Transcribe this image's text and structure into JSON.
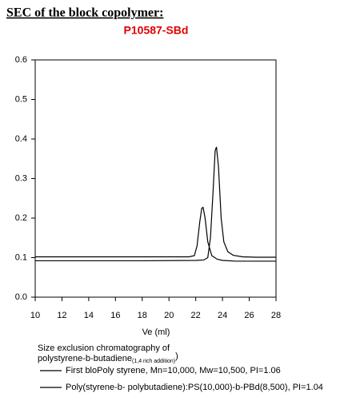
{
  "chart_data": {
    "type": "line",
    "title": "SEC of the block copolymer:",
    "subtitle": "P10587-SBd",
    "xlabel": "Ve (ml)",
    "xlim": [
      10,
      28
    ],
    "xticks": [
      10,
      12,
      14,
      16,
      18,
      20,
      22,
      24,
      26,
      28
    ],
    "ylim": [
      0,
      0.6
    ],
    "yticks": [
      {
        "value": 0,
        "label": "0.0"
      },
      0.1,
      0.2,
      0.3,
      0.4,
      0.5,
      0.6
    ],
    "note": [
      "Size exclusion chromatography of",
      "polystyrene-b-butadiene",
      "(1,4 rich addition)",
      ")"
    ],
    "series": [
      {
        "name": "First bloPoly styrene, Mn=10,000, Mw=10,500, PI=1.06",
        "color": "#000000",
        "x": [
          10,
          14,
          18,
          22,
          22.6,
          22.9,
          23.1,
          23.3,
          23.45,
          23.55,
          23.7,
          23.9,
          24.1,
          24.4,
          24.8,
          25.5,
          26.5,
          28
        ],
        "values": [
          0.092,
          0.092,
          0.092,
          0.093,
          0.094,
          0.1,
          0.15,
          0.27,
          0.37,
          0.38,
          0.33,
          0.2,
          0.14,
          0.115,
          0.106,
          0.102,
          0.101,
          0.101
        ]
      },
      {
        "name": "Poly(styrene-b- polybutadiene):PS(10,000)-b-PBd(8,500),  PI=1.04",
        "color": "#000000",
        "x": [
          10,
          14,
          18,
          21.5,
          21.9,
          22.1,
          22.3,
          22.45,
          22.55,
          22.7,
          22.9,
          23.2,
          23.6,
          24,
          25,
          28
        ],
        "values": [
          0.102,
          0.102,
          0.102,
          0.102,
          0.105,
          0.13,
          0.19,
          0.225,
          0.227,
          0.2,
          0.14,
          0.105,
          0.096,
          0.093,
          0.091,
          0.091
        ]
      }
    ]
  }
}
